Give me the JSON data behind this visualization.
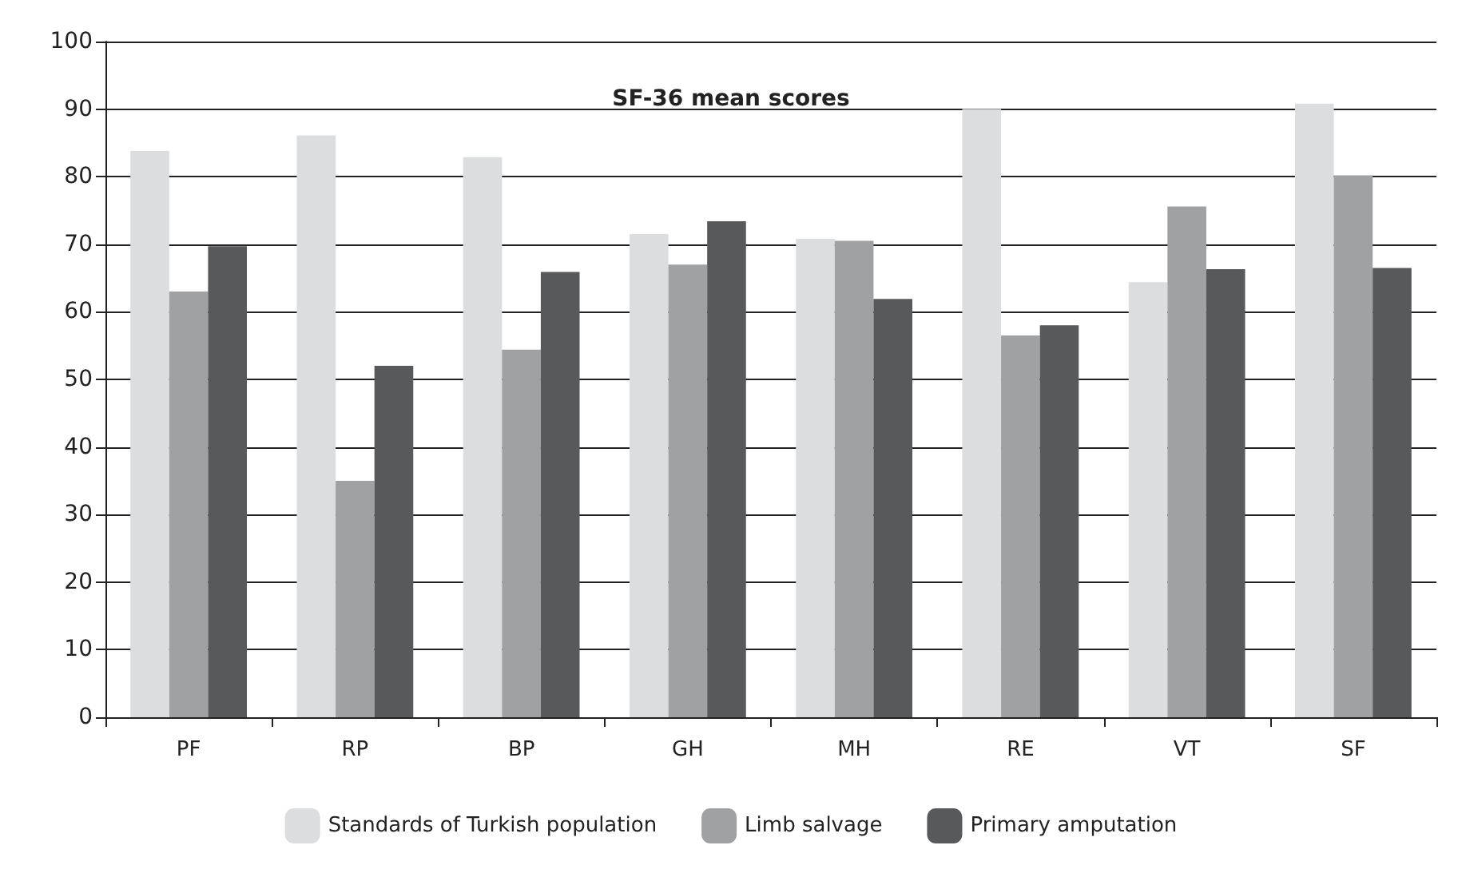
{
  "chart_data": {
    "type": "bar",
    "title": "SF-36 mean scores",
    "categories": [
      "PF",
      "RP",
      "BP",
      "GH",
      "MH",
      "RE",
      "VT",
      "SF"
    ],
    "series": [
      {
        "name": "Standards of Turkish population",
        "color": "#dcdddf",
        "values": [
          83.8,
          86.1,
          82.9,
          71.5,
          70.8,
          90.0,
          64.4,
          90.8
        ]
      },
      {
        "name": "Limb salvage",
        "color": "#a0a1a3",
        "values": [
          63.0,
          35.0,
          54.4,
          67.0,
          70.5,
          56.5,
          75.6,
          80.2
        ]
      },
      {
        "name": "Primary amputation",
        "color": "#58595b",
        "values": [
          69.7,
          52.0,
          65.9,
          73.4,
          61.9,
          58.0,
          66.3,
          66.5
        ]
      }
    ],
    "ylim": [
      0,
      100
    ],
    "yticks": [
      0,
      10,
      20,
      30,
      40,
      50,
      60,
      70,
      80,
      90,
      100
    ],
    "grid": "y",
    "legend": "bottom"
  }
}
